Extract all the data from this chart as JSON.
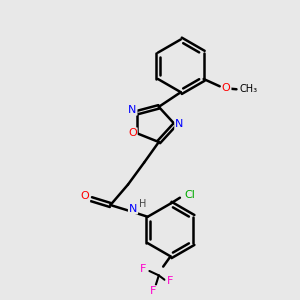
{
  "bg_color": "#e8e8e8",
  "bond_color": "#000000",
  "bond_width": 1.8,
  "atom_colors": {
    "O": "#ff0000",
    "N": "#0000ff",
    "F": "#ff00cc",
    "Cl": "#00aa00",
    "C": "#000000",
    "H": "#444444"
  },
  "font_size": 9,
  "small_font_size": 8
}
